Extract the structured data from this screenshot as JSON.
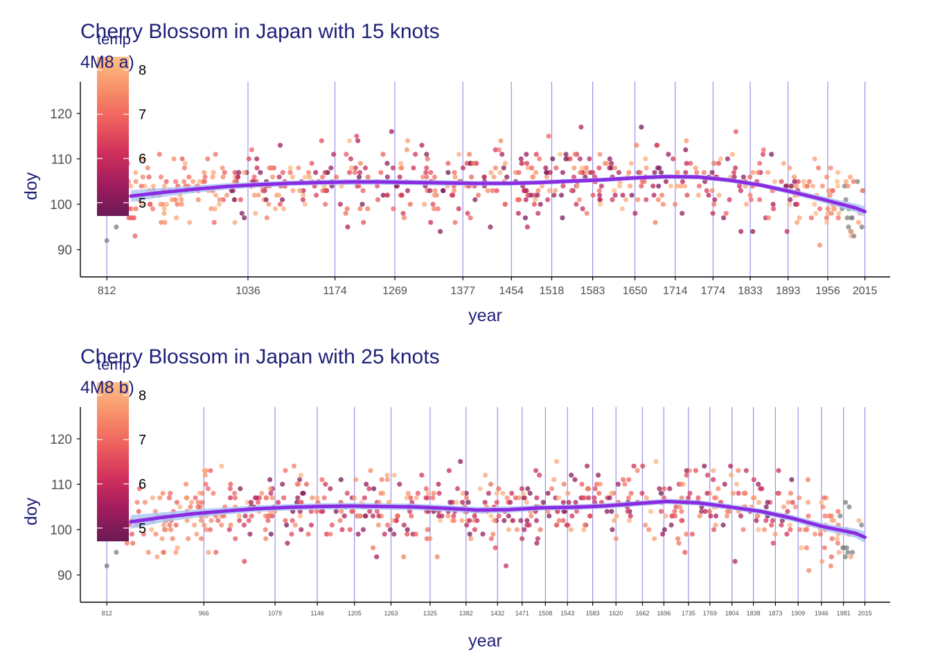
{
  "chart_data": [
    {
      "type": "scatter",
      "title": "Cherry Blossom in Japan with 15 knots",
      "subtitle": "4M8 a)",
      "xlabel": "year",
      "ylabel": "doy",
      "xlim": [
        770,
        2055
      ],
      "ylim": [
        84,
        127
      ],
      "yticks": [
        90,
        100,
        110,
        120
      ],
      "knots": [
        812,
        1036,
        1174,
        1269,
        1377,
        1454,
        1518,
        1583,
        1650,
        1714,
        1774,
        1833,
        1893,
        1956,
        2015
      ],
      "legend": {
        "title": "temp",
        "ticks": [
          5,
          6,
          7,
          8
        ],
        "range": [
          4.7,
          8.3
        ],
        "placement": "left"
      },
      "smooth": {
        "x": [
          850,
          900,
          950,
          1000,
          1050,
          1100,
          1150,
          1200,
          1250,
          1300,
          1350,
          1400,
          1450,
          1500,
          1550,
          1600,
          1650,
          1700,
          1750,
          1800,
          1850,
          1900,
          1950,
          2000,
          2015
        ],
        "y": [
          101.8,
          102.6,
          103.3,
          103.9,
          104.3,
          104.6,
          104.8,
          104.9,
          104.9,
          104.8,
          104.7,
          104.6,
          104.6,
          104.8,
          105.1,
          105.4,
          105.8,
          106.1,
          106.0,
          105.3,
          104.2,
          102.7,
          101.0,
          99.2,
          98.4
        ],
        "band": [
          1.3,
          1.0,
          0.8,
          0.7,
          0.6,
          0.6,
          0.6,
          0.6,
          0.6,
          0.6,
          0.6,
          0.5,
          0.5,
          0.5,
          0.5,
          0.5,
          0.5,
          0.5,
          0.5,
          0.5,
          0.5,
          0.6,
          0.7,
          0.9,
          1.2
        ]
      }
    },
    {
      "type": "scatter",
      "title": "Cherry Blossom in Japan with 25 knots",
      "subtitle": "4M8 b)",
      "xlabel": "year",
      "ylabel": "doy",
      "xlim": [
        770,
        2055
      ],
      "ylim": [
        84,
        127
      ],
      "yticks": [
        90,
        100,
        110,
        120
      ],
      "knots": [
        812,
        966,
        1079,
        1146,
        1205,
        1263,
        1325,
        1382,
        1432,
        1471,
        1508,
        1543,
        1583,
        1620,
        1662,
        1696,
        1735,
        1769,
        1804,
        1838,
        1873,
        1909,
        1946,
        1981,
        2015
      ],
      "legend": {
        "title": "temp",
        "ticks": [
          5,
          6,
          7,
          8
        ],
        "range": [
          4.7,
          8.3
        ],
        "placement": "left"
      },
      "smooth": {
        "x": [
          850,
          900,
          950,
          1000,
          1050,
          1100,
          1150,
          1200,
          1250,
          1300,
          1350,
          1400,
          1450,
          1500,
          1550,
          1600,
          1650,
          1700,
          1750,
          1800,
          1850,
          1900,
          1950,
          2000,
          2015
        ],
        "y": [
          101.7,
          102.7,
          103.5,
          104.1,
          104.6,
          104.9,
          105.1,
          105.2,
          105.1,
          105.0,
          104.7,
          104.3,
          104.4,
          104.8,
          104.9,
          105.2,
          105.7,
          106.2,
          105.9,
          105.0,
          104.0,
          102.5,
          100.6,
          99.2,
          98.3
        ],
        "band": [
          1.5,
          1.1,
          0.9,
          0.8,
          0.7,
          0.7,
          0.7,
          0.7,
          0.7,
          0.7,
          0.7,
          0.7,
          0.7,
          0.6,
          0.6,
          0.6,
          0.6,
          0.6,
          0.6,
          0.6,
          0.6,
          0.7,
          0.8,
          1.0,
          1.3
        ]
      }
    }
  ],
  "colors": {
    "title": "#1f1f78",
    "knot_line": "#9a90e8",
    "smooth_line": "#8a2be2",
    "smooth_band": "#a9c4f5",
    "missing_point": "#7f7f7f",
    "axis": "#000000",
    "tick_label": "#4d4d4d",
    "palette": [
      "#6b1a55",
      "#a01c5e",
      "#d1305c",
      "#ee5f5d",
      "#f7916a",
      "#fdbe87"
    ]
  }
}
